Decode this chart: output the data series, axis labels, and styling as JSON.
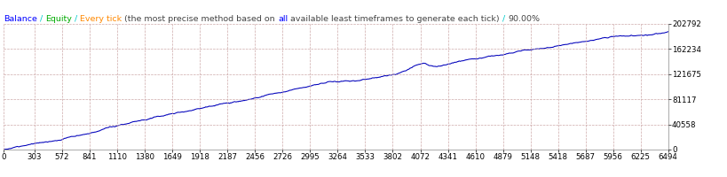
{
  "title_parts": [
    {
      "text": "Balance",
      "color": "#0000FF"
    },
    {
      "text": " / ",
      "color": "#00CCCC"
    },
    {
      "text": "Equity",
      "color": "#00AA00"
    },
    {
      "text": " / ",
      "color": "#00CCCC"
    },
    {
      "text": "Every tick",
      "color": "#FF8800"
    },
    {
      "text": " (the most precise method based on ",
      "color": "#444444"
    },
    {
      "text": "all",
      "color": "#0000FF"
    },
    {
      "text": " available least timeframes to generate each tick)",
      "color": "#444444"
    },
    {
      "text": " / ",
      "color": "#00CCCC"
    },
    {
      "text": "90.00%",
      "color": "#444444"
    }
  ],
  "x_ticks": [
    0,
    303,
    572,
    841,
    1110,
    1380,
    1649,
    1918,
    2187,
    2456,
    2726,
    2995,
    3264,
    3533,
    3802,
    4072,
    4341,
    4610,
    4879,
    5148,
    5418,
    5687,
    5956,
    6225,
    6494
  ],
  "y_ticks_right": [
    0,
    40558,
    81117,
    121675,
    162234,
    202792
  ],
  "x_max": 6494,
  "y_max": 202792,
  "line_color": "#0000BB",
  "bg_color": "#FFFFFF",
  "grid_color": "#C8A0A0",
  "title_fontsize": 6.8,
  "tick_fontsize": 6.2
}
